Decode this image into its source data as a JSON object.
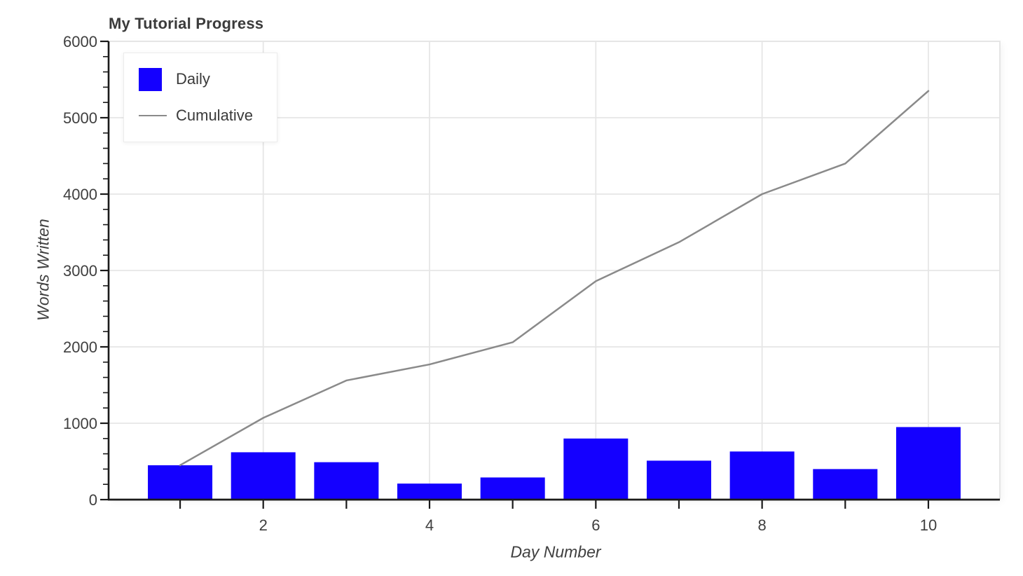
{
  "page": {
    "background": "#ffffff"
  },
  "chart_data": {
    "type": "combo",
    "title": "My Tutorial Progress",
    "xlabel": "Day Number",
    "ylabel": "Words Written",
    "x": [
      1,
      2,
      3,
      4,
      5,
      6,
      7,
      8,
      9,
      10
    ],
    "series": [
      {
        "name": "Daily",
        "type": "bar",
        "color": "#1400ff",
        "values": [
          450,
          620,
          490,
          210,
          290,
          800,
          510,
          630,
          400,
          950
        ]
      },
      {
        "name": "Cumulative",
        "type": "line",
        "color": "#8a8a8a",
        "values": [
          450,
          1070,
          1560,
          1770,
          2060,
          2860,
          3370,
          4000,
          4400,
          5350
        ]
      }
    ],
    "ylim": [
      0,
      6000
    ],
    "xlim": [
      0.14,
      10.86
    ],
    "y_ticks": [
      0,
      1000,
      2000,
      3000,
      4000,
      5000,
      6000
    ],
    "y_minor_tick_step": 200,
    "x_ticks": [
      1,
      2,
      3,
      4,
      5,
      6,
      7,
      8,
      9,
      10
    ],
    "x_tick_labels": [
      "2",
      "4",
      "6",
      "8",
      "10"
    ],
    "grid": true,
    "legend_position": "top-left"
  },
  "colors": {
    "bar": "#1400ff",
    "line": "#8a8a8a",
    "grid": "#e6e6e6",
    "frame": "#e3e3e3",
    "spine": "#1a1a1a",
    "title_text": "#3b3b3b",
    "tick_text": "#3f3f3f",
    "background": "#ffffff"
  }
}
